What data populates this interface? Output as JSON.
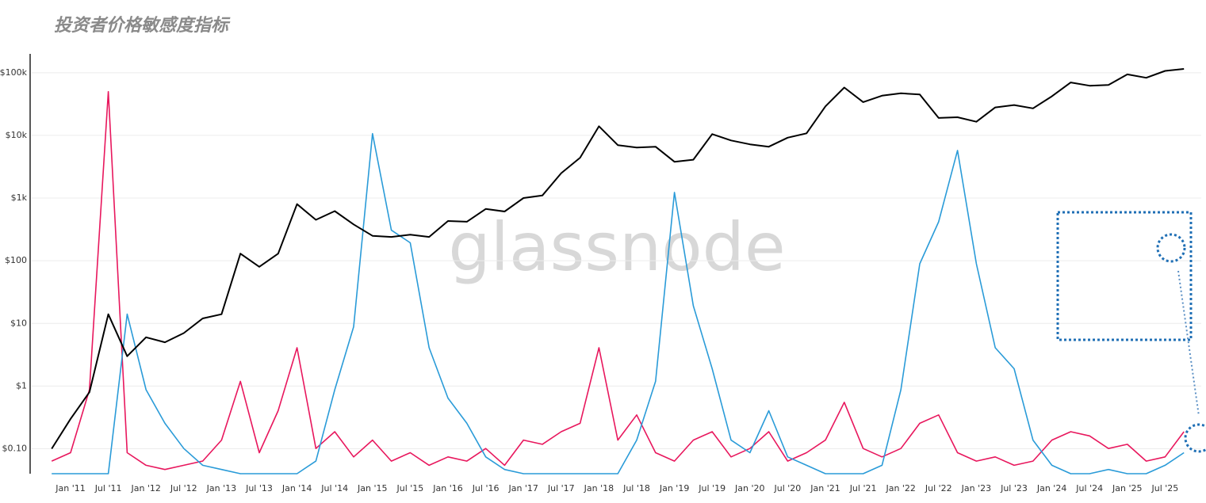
{
  "chart_data": {
    "type": "line",
    "title": "投资者价格敏感度指标",
    "watermark": "glassnode",
    "categories": [
      null,
      "Jan '11",
      null,
      "Jul '11",
      null,
      "Jan '12",
      null,
      "Jul '12",
      null,
      "Jan '13",
      null,
      "Jul '13",
      null,
      "Jan '14",
      null,
      "Jul '14",
      null,
      "Jan '15",
      null,
      "Jul '15",
      null,
      "Jan '16",
      null,
      "Jul '16",
      null,
      "Jan '17",
      null,
      "Jul '17",
      null,
      "Jan '18",
      null,
      "Jul '18",
      null,
      "Jan '19",
      null,
      "Jul '19",
      null,
      "Jan '20",
      null,
      "Jul '20",
      null,
      "Jan '21",
      null,
      "Jul '21",
      null,
      "Jan '22",
      null,
      "Jul '22",
      null,
      "Jan '23",
      null,
      "Jul '23",
      null,
      "Jan '24",
      null,
      "Jul '24",
      null,
      "Jan '25",
      null,
      "Jul '25",
      null
    ],
    "log_scale": true,
    "grid": true,
    "ylim": [
      0.04,
      200000
    ],
    "yticks": [
      {
        "value": 0.1,
        "label": "$0.10"
      },
      {
        "value": 1,
        "label": "$1"
      },
      {
        "value": 10,
        "label": "$10"
      },
      {
        "value": 100,
        "label": "$100"
      },
      {
        "value": 1000,
        "label": "$1k"
      },
      {
        "value": 10000,
        "label": "$10k"
      },
      {
        "value": 100000,
        "label": "$100k"
      }
    ],
    "y2lim": [
      0,
      100
    ],
    "series": [
      {
        "color": "#000000",
        "values": [
          0.1,
          0.3,
          0.8,
          14,
          3,
          6,
          5,
          7,
          12,
          14,
          130,
          80,
          130,
          800,
          450,
          620,
          380,
          250,
          240,
          260,
          240,
          430,
          420,
          670,
          610,
          1000,
          1100,
          2500,
          4400,
          14000,
          7000,
          6400,
          6600,
          3800,
          4100,
          10500,
          8300,
          7200,
          6600,
          9200,
          10800,
          29000,
          58000,
          34000,
          43000,
          47000,
          45000,
          19000,
          19500,
          16500,
          28000,
          30500,
          27000,
          42000,
          70000,
          62000,
          64000,
          94000,
          83000,
          107000,
          115000
        ]
      },
      {
        "color": "#e8175d",
        "axis": "y2",
        "values": [
          3,
          5,
          20,
          91,
          5,
          2,
          1,
          2,
          3,
          8,
          22,
          5,
          15,
          30,
          6,
          10,
          4,
          8,
          3,
          5,
          2,
          4,
          3,
          6,
          2,
          8,
          7,
          10,
          12,
          30,
          8,
          14,
          5,
          3,
          8,
          10,
          4,
          6,
          10,
          3,
          5,
          8,
          17,
          6,
          4,
          6,
          12,
          14,
          5,
          3,
          4,
          2,
          3,
          8,
          10,
          9,
          6,
          7,
          3,
          4,
          10
        ]
      },
      {
        "color": "#2a9bd8",
        "axis": "y2",
        "values": [
          0,
          0,
          0,
          0,
          38,
          20,
          12,
          6,
          2,
          1,
          0,
          0,
          0,
          0,
          3,
          20,
          35,
          81,
          58,
          55,
          30,
          18,
          12,
          4,
          1,
          0,
          0,
          0,
          0,
          0,
          0,
          8,
          22,
          67,
          40,
          25,
          8,
          5,
          15,
          4,
          2,
          0,
          0,
          0,
          2,
          20,
          50,
          60,
          77,
          50,
          30,
          25,
          8,
          2,
          0,
          0,
          1,
          0,
          0,
          2,
          5
        ]
      }
    ]
  }
}
